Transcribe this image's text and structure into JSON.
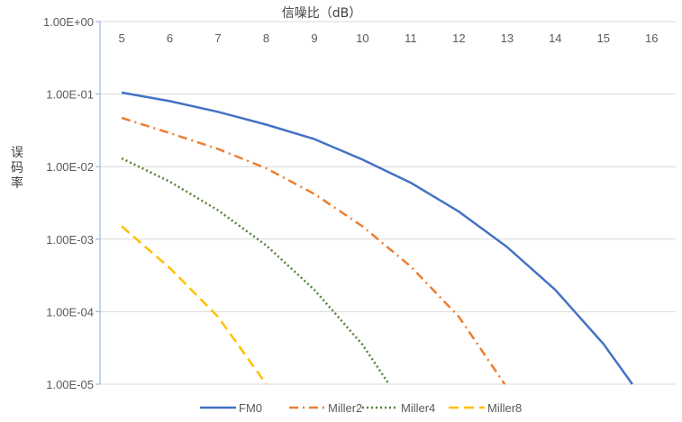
{
  "chart_data": {
    "type": "line",
    "xlabel": "信噪比（dB）",
    "ylabel": "误码率",
    "x_tick_labels": [
      "5",
      "6",
      "7",
      "8",
      "9",
      "10",
      "11",
      "12",
      "13",
      "14",
      "15",
      "16"
    ],
    "y_tick_labels": [
      "1.00E+00",
      "1.00E-01",
      "1.00E-02",
      "1.00E-03",
      "1.00E-04",
      "1.00E-05"
    ],
    "xlim": [
      4.55,
      16.5
    ],
    "ylim": [
      1e-05,
      1
    ],
    "y_scale": "log",
    "x_axis_position": "top",
    "grid": true,
    "legend_position": "bottom",
    "series": [
      {
        "name": "FM0",
        "color": "#4472C4",
        "dash": "solid",
        "x": [
          5,
          6,
          7,
          8,
          9,
          10,
          11,
          12,
          13,
          14,
          15,
          15.6
        ],
        "y": [
          0.105,
          0.08,
          0.057,
          0.038,
          0.024,
          0.0125,
          0.006,
          0.0024,
          0.00078,
          0.0002,
          3.6e-05,
          1e-05
        ]
      },
      {
        "name": "Miller2",
        "color": "#ED7D31",
        "dash": "dashdot",
        "x": [
          5,
          6,
          7,
          8,
          9,
          10,
          11,
          12,
          12.95
        ],
        "y": [
          0.047,
          0.029,
          0.0175,
          0.0095,
          0.0042,
          0.0015,
          0.00042,
          8.5e-05,
          1e-05
        ]
      },
      {
        "name": "Miller4",
        "color": "#548235",
        "dash": "dotted",
        "x": [
          5,
          6,
          7,
          8,
          9,
          10,
          10.55
        ],
        "y": [
          0.013,
          0.0062,
          0.0025,
          0.00082,
          0.0002,
          3.5e-05,
          1e-05
        ]
      },
      {
        "name": "Miller8",
        "color": "#FFC000",
        "dash": "dashed",
        "x": [
          5,
          6,
          7,
          8
        ],
        "y": [
          0.0015,
          0.0004,
          8.5e-05,
          1e-05
        ]
      }
    ]
  }
}
